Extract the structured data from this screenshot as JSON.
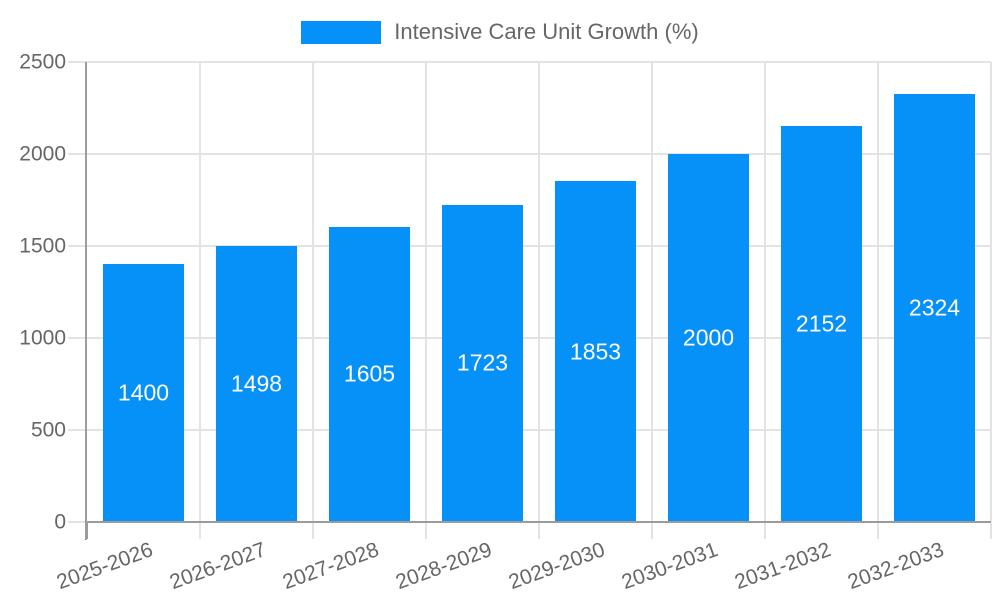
{
  "legend": {
    "label": "Intensive Care Unit Growth (%)"
  },
  "chart_data": {
    "type": "bar",
    "title": "Intensive Care Unit Growth (%)",
    "categories": [
      "2025-2026",
      "2026-2027",
      "2027-2028",
      "2028-2029",
      "2029-2030",
      "2030-2031",
      "2031-2032",
      "2032-2033"
    ],
    "values": [
      1400,
      1498,
      1605,
      1723,
      1853,
      2000,
      2152,
      2324
    ],
    "value_labels": [
      "1400",
      "1498",
      "1605",
      "1723",
      "1853",
      "2000",
      "2152",
      "2324"
    ],
    "xlabel": "",
    "ylabel": "",
    "ylim": [
      0,
      2500
    ],
    "yticks": [
      0,
      500,
      1000,
      1500,
      2000,
      2500
    ],
    "grid": true,
    "legend_position": "top-center",
    "x_tick_rotation_deg": -20,
    "colors": {
      "bar_fill": "#0591f7",
      "value_label": "#ffffff",
      "axis_line": "#9b9b9b",
      "gridline": "#e3e3e3",
      "tick_text": "#666666",
      "legend_text": "#666666",
      "background": "#ffffff"
    }
  }
}
